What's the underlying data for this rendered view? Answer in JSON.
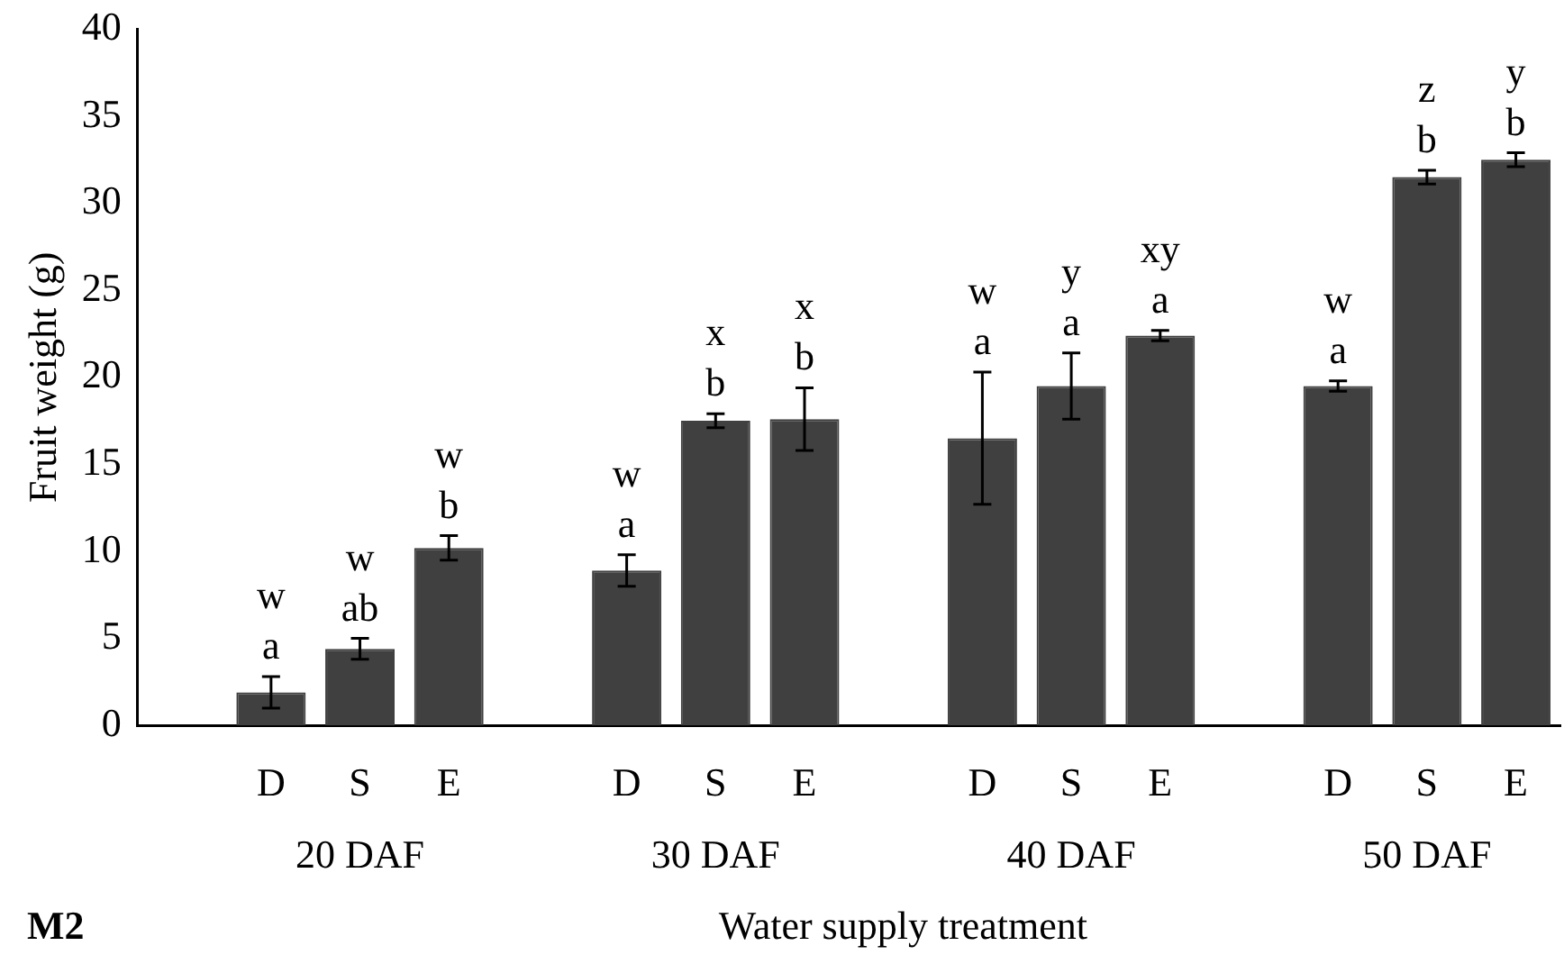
{
  "chart_data": {
    "type": "bar",
    "ylabel": "Fruit weight (g)",
    "xlabel": "Water supply treatment",
    "categories": [
      null,
      "D",
      "S",
      "E",
      null,
      "D",
      "S",
      "E",
      null,
      "D",
      "S",
      "E",
      null,
      "D",
      "S",
      "E"
    ],
    "values": [
      null,
      1.9,
      4.4,
      10.2,
      null,
      8.9,
      17.5,
      17.6,
      null,
      16.5,
      19.5,
      22.4,
      null,
      19.5,
      31.5,
      32.5
    ],
    "errors": [
      null,
      0.9,
      0.6,
      0.7,
      null,
      0.9,
      0.4,
      1.8,
      null,
      3.8,
      1.9,
      0.3,
      null,
      0.3,
      0.4,
      0.4
    ],
    "value_labels": [
      null,
      "w\na",
      "w\nab",
      "w\nb",
      null,
      "w\na",
      "x\nb",
      "x\nb",
      null,
      "w\na",
      "y\na",
      "xy\na",
      null,
      "w\na",
      "z\nb",
      "y\nb"
    ],
    "color": "#404040",
    "ylim": [
      0,
      40
    ],
    "yticks": [
      0,
      5,
      10,
      15,
      20,
      25,
      30,
      35,
      40
    ],
    "grid": false,
    "legend": false,
    "annotations": [
      "20 DAF",
      "30 DAF",
      "40 DAF",
      "50 DAF",
      "M2"
    ]
  }
}
